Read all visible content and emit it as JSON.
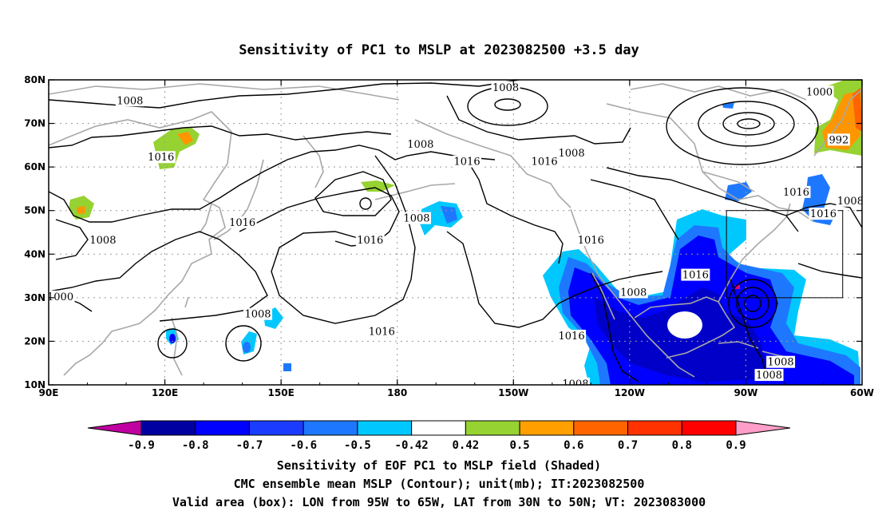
{
  "title": "Sensitivity of PC1 to MSLP at 2023082500 +3.5 day",
  "footer": [
    "Sensitivity of EOF PC1 to MSLP field (Shaded)",
    "CMC ensemble mean MSLP (Contour); unit(mb); IT:2023082500",
    "Valid area (box): LON from 95W to 65W, LAT from 30N to 50N; VT: 2023083000"
  ],
  "map": {
    "lon_range": [
      90,
      300
    ],
    "lat_range": [
      10,
      80
    ],
    "x_ticks": [
      {
        "lon": 90,
        "label": "90E"
      },
      {
        "lon": 120,
        "label": "120E"
      },
      {
        "lon": 150,
        "label": "150E"
      },
      {
        "lon": 180,
        "label": "180"
      },
      {
        "lon": 210,
        "label": "150W"
      },
      {
        "lon": 240,
        "label": "120W"
      },
      {
        "lon": 270,
        "label": "90W"
      },
      {
        "lon": 300,
        "label": "60W"
      }
    ],
    "y_ticks": [
      {
        "lat": 80,
        "label": "80N"
      },
      {
        "lat": 70,
        "label": "70N"
      },
      {
        "lat": 60,
        "label": "60N"
      },
      {
        "lat": 50,
        "label": "50N"
      },
      {
        "lat": 40,
        "label": "40N"
      },
      {
        "lat": 30,
        "label": "30N"
      },
      {
        "lat": 20,
        "label": "20N"
      },
      {
        "lat": 10,
        "label": "10N"
      }
    ],
    "grid": true,
    "valid_box": {
      "lon": [
        265,
        295
      ],
      "lat": [
        30,
        50
      ]
    },
    "contour_labels": [
      {
        "text": "1008",
        "lon": 111,
        "lat": 75
      },
      {
        "text": "1008",
        "lon": 186,
        "lat": 65
      },
      {
        "text": "1008",
        "lon": 208,
        "lat": 78
      },
      {
        "text": "1008",
        "lon": 225,
        "lat": 63
      },
      {
        "text": "1000",
        "lon": 289,
        "lat": 77
      },
      {
        "text": "992",
        "lon": 294,
        "lat": 66
      },
      {
        "text": "1016",
        "lon": 119,
        "lat": 62
      },
      {
        "text": "1016",
        "lon": 198,
        "lat": 61
      },
      {
        "text": "1016",
        "lon": 218,
        "lat": 61
      },
      {
        "text": "1016",
        "lon": 283,
        "lat": 54
      },
      {
        "text": "1008",
        "lon": 297,
        "lat": 52
      },
      {
        "text": "1016",
        "lon": 290,
        "lat": 49
      },
      {
        "text": "1016",
        "lon": 140,
        "lat": 47
      },
      {
        "text": "1008",
        "lon": 185,
        "lat": 48
      },
      {
        "text": "1016",
        "lon": 173,
        "lat": 43
      },
      {
        "text": "1016",
        "lon": 230,
        "lat": 43
      },
      {
        "text": "1008",
        "lon": 104,
        "lat": 43
      },
      {
        "text": "1000",
        "lon": 93,
        "lat": 30
      },
      {
        "text": "1008",
        "lon": 144,
        "lat": 26
      },
      {
        "text": "1016",
        "lon": 176,
        "lat": 22
      },
      {
        "text": "1016",
        "lon": 225,
        "lat": 21
      },
      {
        "text": "1016",
        "lon": 257,
        "lat": 35
      },
      {
        "text": "1008",
        "lon": 241,
        "lat": 31
      },
      {
        "text": "1008",
        "lon": 279,
        "lat": 15
      },
      {
        "text": "1008",
        "lon": 276,
        "lat": 12
      },
      {
        "text": "1008",
        "lon": 226,
        "lat": 10
      }
    ]
  },
  "colorbar": {
    "labels": [
      "-0.9",
      "-0.8",
      "-0.7",
      "-0.6",
      "-0.5",
      "-0.42",
      "0.42",
      "0.5",
      "0.6",
      "0.7",
      "0.8",
      "0.9"
    ],
    "colors": [
      "#0000a0",
      "#0000ff",
      "#1b3cff",
      "#1e78ff",
      "#00c8ff",
      "#ffffff",
      "#96d232",
      "#ffa000",
      "#ff6400",
      "#ff3200",
      "#ff0000"
    ],
    "low_end_color": "#c000a0",
    "high_end_color": "#ff9ec8"
  },
  "shading_colors": {
    "deep_blue": "#0000ff",
    "mid_blue": "#1e5aff",
    "light_blue": "#00c8ff",
    "green": "#96d232",
    "orange": "#ff9600",
    "magenta": "#e0007a"
  }
}
